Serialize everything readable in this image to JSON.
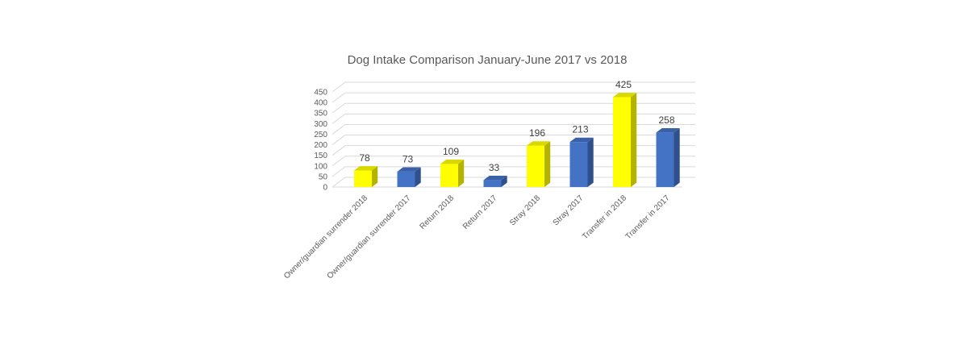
{
  "chart_data": {
    "type": "bar",
    "title": "Dog Intake Comparison January-June 2017 vs 2018",
    "xlabel": "",
    "ylabel": "",
    "ylim": [
      0,
      450
    ],
    "yticks": [
      0,
      50,
      100,
      150,
      200,
      250,
      300,
      350,
      400,
      450
    ],
    "grid": true,
    "legend": "none",
    "categories": [
      "Owner/guardian surrender 2018",
      "Owner/guardian surrender 2017",
      "Return 2018",
      "Return 2017",
      "Stray 2018",
      "Stray 2017",
      "Transfer in 2018",
      "Transfer in 2017"
    ],
    "values": [
      78,
      73,
      109,
      33,
      196,
      213,
      425,
      258
    ],
    "colors": [
      "#ffff00",
      "#4472c4",
      "#ffff00",
      "#4472c4",
      "#ffff00",
      "#4472c4",
      "#ffff00",
      "#4472c4"
    ],
    "data_labels": [
      "78",
      "73",
      "109",
      "33",
      "196",
      "213",
      "425",
      "258"
    ]
  }
}
